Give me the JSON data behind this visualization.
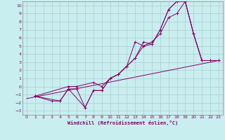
{
  "xlabel": "Windchill (Refroidissement éolien,°C)",
  "xlim": [
    -0.5,
    23.5
  ],
  "ylim": [
    -3.5,
    10.5
  ],
  "xticks": [
    0,
    1,
    2,
    3,
    4,
    5,
    6,
    7,
    8,
    9,
    10,
    11,
    12,
    13,
    14,
    15,
    16,
    17,
    18,
    19,
    20,
    21,
    22,
    23
  ],
  "yticks": [
    -3,
    -2,
    -1,
    0,
    1,
    2,
    3,
    4,
    5,
    6,
    7,
    8,
    9,
    10
  ],
  "background_color": "#c8eef0",
  "grid_color": "#b0cccc",
  "line_color": "#880066",
  "series": [
    {
      "x": [
        1,
        3,
        4,
        5,
        7,
        8,
        9,
        10,
        11,
        12,
        13,
        14,
        15,
        16,
        17,
        18,
        19,
        20,
        21,
        22,
        23
      ],
      "y": [
        -1.2,
        -1.8,
        -1.8,
        -0.3,
        -2.6,
        -0.5,
        -0.5,
        1.0,
        1.5,
        2.5,
        5.5,
        5.0,
        5.2,
        7.0,
        9.5,
        10.5,
        10.5,
        6.5,
        3.2,
        3.2,
        3.2
      ]
    },
    {
      "x": [
        1,
        4,
        5,
        6,
        7,
        8,
        9,
        10,
        11,
        12,
        13,
        14,
        15,
        16,
        17,
        18,
        19,
        20,
        21,
        22,
        23
      ],
      "y": [
        -1.2,
        -1.8,
        -0.3,
        -0.3,
        -2.6,
        -0.5,
        -0.5,
        1.0,
        1.5,
        2.5,
        3.5,
        5.5,
        5.2,
        7.0,
        9.5,
        10.5,
        10.5,
        6.5,
        3.2,
        3.2,
        3.2
      ]
    },
    {
      "x": [
        1,
        5,
        6,
        8,
        9,
        10,
        11,
        12,
        13,
        14,
        15,
        16,
        17,
        18,
        19,
        20,
        21,
        22,
        23
      ],
      "y": [
        -1.2,
        0.0,
        0.0,
        0.5,
        0.0,
        1.0,
        1.5,
        2.5,
        3.5,
        5.0,
        5.5,
        6.5,
        8.5,
        9.0,
        10.5,
        6.5,
        3.2,
        3.2,
        3.2
      ]
    },
    {
      "x": [
        0,
        23
      ],
      "y": [
        -1.5,
        3.2
      ]
    }
  ]
}
